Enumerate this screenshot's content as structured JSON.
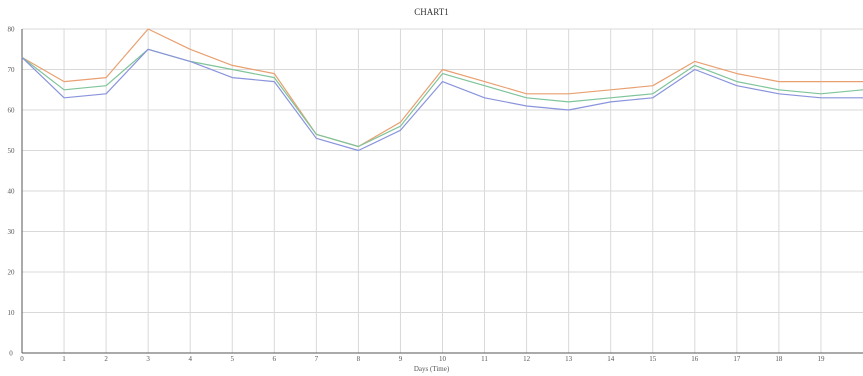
{
  "chart_data": {
    "type": "line",
    "title": "CHART1",
    "xlabel": "Days (Time)",
    "ylabel": "",
    "x": [
      0,
      1,
      2,
      3,
      4,
      5,
      6,
      7,
      8,
      9,
      10,
      11,
      12,
      13,
      14,
      15,
      16,
      17,
      18,
      19,
      20
    ],
    "x_tick_labels": [
      "0",
      "1",
      "2",
      "3",
      "4",
      "5",
      "6",
      "7",
      "8",
      "9",
      "10",
      "11",
      "12",
      "13",
      "14",
      "15",
      "16",
      "17",
      "18",
      "19"
    ],
    "y_tick_labels": [
      "0",
      "10",
      "20",
      "30",
      "40",
      "50",
      "60",
      "70",
      "80"
    ],
    "xlim": [
      0,
      20
    ],
    "ylim": [
      0,
      80
    ],
    "grid": true,
    "series": [
      {
        "color": "#e8a070",
        "values": [
          73,
          67,
          68,
          80,
          75,
          71,
          69,
          54,
          51,
          57,
          70,
          67,
          64,
          64,
          65,
          66,
          72,
          69,
          67,
          67,
          67
        ]
      },
      {
        "color": "#7fc49a",
        "values": [
          73,
          65,
          66,
          75,
          72,
          70,
          68,
          54,
          51,
          56,
          69,
          66,
          63,
          62,
          63,
          64,
          71,
          67,
          65,
          64,
          65
        ]
      },
      {
        "color": "#8a94dc",
        "values": [
          73,
          63,
          64,
          75,
          72,
          68,
          67,
          53,
          50,
          55,
          67,
          63,
          61,
          60,
          62,
          63,
          70,
          66,
          64,
          63,
          63
        ]
      }
    ]
  }
}
